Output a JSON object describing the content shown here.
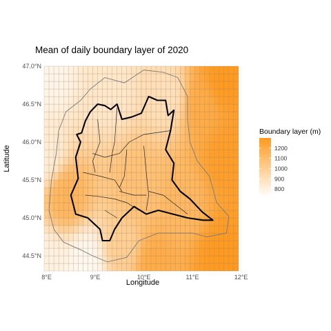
{
  "chart_data": {
    "type": "heatmap",
    "title": "Mean of daily boundary layer  of 2020",
    "xlabel": "Longitude",
    "ylabel": "Latitude",
    "xlim": [
      7.95,
      11.95
    ],
    "ylim": [
      44.3,
      47.0
    ],
    "x_ticks": [
      8,
      9,
      10,
      11,
      12
    ],
    "x_tick_labels": [
      "8°E",
      "9°E",
      "10°E",
      "11°E",
      "12°E"
    ],
    "y_ticks": [
      44.5,
      45.0,
      45.5,
      46.0,
      46.5,
      47.0
    ],
    "y_tick_labels": [
      "44.5°N",
      "45.0°N",
      "45.5°N",
      "46.0°N",
      "46.5°N",
      "47.0°N"
    ],
    "grid_cell_deg": 0.1,
    "legend": {
      "title": "Boundary layer (m)",
      "placement": "right",
      "min": 720,
      "max": 1300,
      "ticks": [
        800,
        900,
        1000,
        1100,
        1200
      ],
      "low_color": "#ffffff",
      "high_color": "#ff9a1f"
    },
    "field_anchors": [
      {
        "lon": 8.0,
        "lat": 46.9,
        "value": 780
      },
      {
        "lon": 8.0,
        "lat": 45.8,
        "value": 830
      },
      {
        "lon": 8.0,
        "lat": 44.4,
        "value": 800
      },
      {
        "lon": 8.4,
        "lat": 45.3,
        "value": 1150
      },
      {
        "lon": 8.8,
        "lat": 44.4,
        "value": 760
      },
      {
        "lon": 9.3,
        "lat": 46.7,
        "value": 860
      },
      {
        "lon": 9.6,
        "lat": 44.6,
        "value": 1000
      },
      {
        "lon": 10.2,
        "lat": 44.4,
        "value": 1200
      },
      {
        "lon": 10.5,
        "lat": 46.6,
        "value": 900
      },
      {
        "lon": 11.2,
        "lat": 46.5,
        "value": 1200
      },
      {
        "lon": 11.6,
        "lat": 46.8,
        "value": 1300
      },
      {
        "lon": 11.7,
        "lat": 45.8,
        "value": 1280
      },
      {
        "lon": 11.6,
        "lat": 44.5,
        "value": 1300
      },
      {
        "lon": 10.8,
        "lat": 45.2,
        "value": 1130
      },
      {
        "lon": 9.9,
        "lat": 45.4,
        "value": 1080
      }
    ],
    "region_boundary": [
      [
        8.62,
        46.1
      ],
      [
        8.72,
        46.12
      ],
      [
        8.8,
        46.28
      ],
      [
        8.9,
        46.4
      ],
      [
        9.05,
        46.5
      ],
      [
        9.2,
        46.48
      ],
      [
        9.32,
        46.43
      ],
      [
        9.45,
        46.5
      ],
      [
        9.55,
        46.3
      ],
      [
        9.75,
        46.33
      ],
      [
        9.95,
        46.38
      ],
      [
        10.1,
        46.6
      ],
      [
        10.28,
        46.55
      ],
      [
        10.45,
        46.55
      ],
      [
        10.5,
        46.35
      ],
      [
        10.62,
        46.42
      ],
      [
        10.55,
        46.15
      ],
      [
        10.45,
        45.9
      ],
      [
        10.62,
        45.72
      ],
      [
        10.58,
        45.5
      ],
      [
        10.75,
        45.35
      ],
      [
        10.95,
        45.25
      ],
      [
        11.2,
        45.08
      ],
      [
        11.42,
        44.97
      ],
      [
        11.22,
        44.97
      ],
      [
        10.9,
        45.0
      ],
      [
        10.6,
        45.05
      ],
      [
        10.3,
        45.1
      ],
      [
        10.05,
        45.05
      ],
      [
        9.8,
        45.15
      ],
      [
        9.55,
        45.0
      ],
      [
        9.4,
        44.85
      ],
      [
        9.3,
        44.7
      ],
      [
        9.15,
        44.7
      ],
      [
        9.1,
        44.85
      ],
      [
        8.85,
        45.0
      ],
      [
        8.6,
        45.05
      ],
      [
        8.5,
        45.3
      ],
      [
        8.65,
        45.52
      ],
      [
        8.6,
        45.8
      ],
      [
        8.7,
        46.0
      ],
      [
        8.62,
        46.1
      ]
    ],
    "buffer_boundary": [
      [
        8.4,
        46.4
      ],
      [
        8.7,
        46.55
      ],
      [
        8.9,
        46.7
      ],
      [
        9.2,
        46.85
      ],
      [
        9.6,
        46.78
      ],
      [
        10.0,
        46.95
      ],
      [
        10.4,
        46.92
      ],
      [
        10.7,
        46.85
      ],
      [
        10.9,
        46.6
      ],
      [
        10.9,
        46.3
      ],
      [
        10.95,
        46.0
      ],
      [
        11.1,
        45.75
      ],
      [
        11.35,
        45.55
      ],
      [
        11.5,
        45.2
      ],
      [
        11.75,
        45.02
      ],
      [
        11.7,
        44.8
      ],
      [
        11.3,
        44.75
      ],
      [
        11.0,
        44.8
      ],
      [
        10.6,
        44.8
      ],
      [
        10.3,
        44.8
      ],
      [
        9.9,
        44.7
      ],
      [
        9.65,
        44.48
      ],
      [
        9.25,
        44.42
      ],
      [
        8.95,
        44.5
      ],
      [
        8.7,
        44.58
      ],
      [
        8.35,
        44.68
      ],
      [
        8.15,
        44.85
      ],
      [
        8.05,
        45.1
      ],
      [
        8.1,
        45.5
      ],
      [
        8.2,
        45.85
      ],
      [
        8.25,
        46.15
      ],
      [
        8.4,
        46.4
      ]
    ],
    "internal_boundaries": [
      [
        [
          9.05,
          46.3
        ],
        [
          9.1,
          46.0
        ],
        [
          8.95,
          45.75
        ],
        [
          9.0,
          45.6
        ]
      ],
      [
        [
          9.45,
          46.45
        ],
        [
          9.4,
          46.0
        ],
        [
          9.35,
          45.85
        ],
        [
          9.3,
          45.6
        ]
      ],
      [
        [
          8.95,
          45.85
        ],
        [
          9.2,
          45.8
        ],
        [
          9.5,
          45.85
        ],
        [
          9.7,
          46.0
        ],
        [
          10.0,
          46.1
        ],
        [
          10.55,
          46.15
        ]
      ],
      [
        [
          9.65,
          45.9
        ],
        [
          9.6,
          45.55
        ],
        [
          9.5,
          45.4
        ]
      ],
      [
        [
          8.75,
          45.6
        ],
        [
          9.1,
          45.55
        ],
        [
          9.4,
          45.5
        ],
        [
          9.55,
          45.35
        ]
      ],
      [
        [
          10.0,
          45.95
        ],
        [
          10.05,
          45.6
        ],
        [
          10.1,
          45.3
        ],
        [
          10.05,
          45.1
        ]
      ],
      [
        [
          8.8,
          45.3
        ],
        [
          9.1,
          45.28
        ],
        [
          9.4,
          45.25
        ],
        [
          9.65,
          45.2
        ],
        [
          9.9,
          45.1
        ]
      ],
      [
        [
          9.5,
          45.35
        ],
        [
          9.8,
          45.3
        ],
        [
          10.05,
          45.3
        ]
      ],
      [
        [
          10.1,
          45.35
        ],
        [
          10.4,
          45.3
        ],
        [
          10.6,
          45.2
        ],
        [
          10.9,
          45.05
        ]
      ],
      [
        [
          9.2,
          45.1
        ],
        [
          9.45,
          45.0
        ]
      ]
    ]
  }
}
